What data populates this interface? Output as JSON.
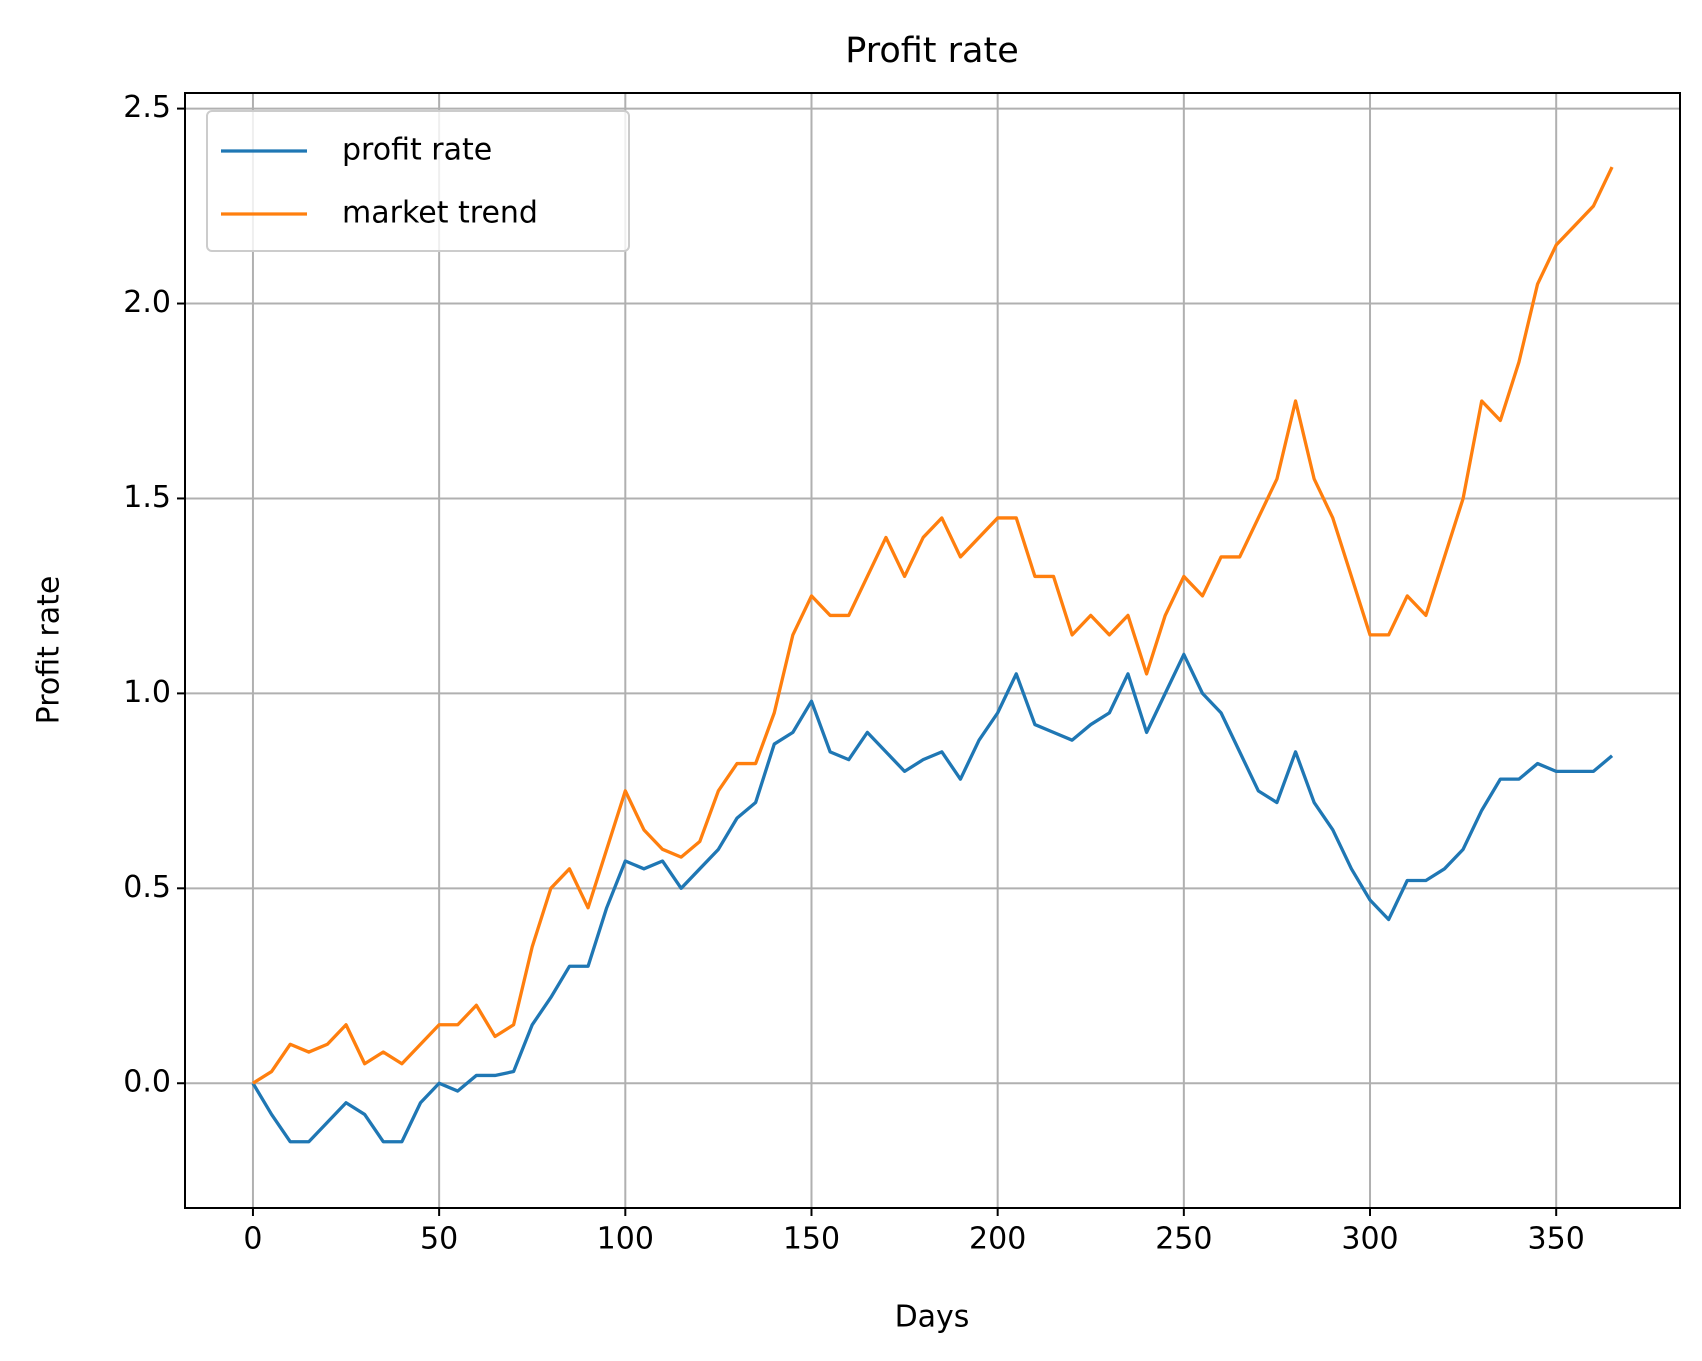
{
  "chart_data": {
    "type": "line",
    "title": "Profit rate",
    "x_label": "Days",
    "y_label": "Profit rate",
    "x": [
      0,
      5,
      10,
      15,
      20,
      25,
      30,
      35,
      40,
      45,
      50,
      55,
      60,
      65,
      70,
      75,
      80,
      85,
      90,
      95,
      100,
      105,
      110,
      115,
      120,
      125,
      130,
      135,
      140,
      145,
      150,
      155,
      160,
      165,
      170,
      175,
      180,
      185,
      190,
      195,
      200,
      205,
      210,
      215,
      220,
      225,
      230,
      235,
      240,
      245,
      250,
      255,
      260,
      265,
      270,
      275,
      280,
      285,
      290,
      295,
      300,
      305,
      310,
      315,
      320,
      325,
      330,
      335,
      340,
      345,
      350,
      355,
      360,
      365
    ],
    "series": [
      {
        "name": "profit rate",
        "color": "#1f77b4",
        "values": [
          0,
          -0.08,
          -0.15,
          -0.15,
          -0.1,
          -0.05,
          -0.08,
          -0.15,
          -0.15,
          -0.05,
          0.0,
          -0.02,
          0.02,
          0.02,
          0.03,
          0.15,
          0.22,
          0.3,
          0.3,
          0.45,
          0.57,
          0.55,
          0.57,
          0.5,
          0.55,
          0.6,
          0.68,
          0.72,
          0.87,
          0.9,
          0.98,
          0.85,
          0.83,
          0.9,
          0.85,
          0.8,
          0.83,
          0.85,
          0.78,
          0.88,
          0.95,
          1.05,
          0.92,
          0.9,
          0.88,
          0.92,
          0.95,
          1.05,
          0.9,
          1.0,
          1.1,
          1.0,
          0.95,
          0.85,
          0.75,
          0.72,
          0.85,
          0.72,
          0.65,
          0.55,
          0.47,
          0.42,
          0.52,
          0.52,
          0.55,
          0.6,
          0.7,
          0.78,
          0.78,
          0.82,
          0.8,
          0.8,
          0.8,
          0.84
        ]
      },
      {
        "name": "market trend",
        "color": "#ff7f0e",
        "values": [
          0,
          0.03,
          0.1,
          0.08,
          0.1,
          0.15,
          0.05,
          0.08,
          0.05,
          0.1,
          0.15,
          0.15,
          0.2,
          0.12,
          0.15,
          0.35,
          0.5,
          0.55,
          0.45,
          0.6,
          0.75,
          0.65,
          0.6,
          0.58,
          0.62,
          0.75,
          0.82,
          0.82,
          0.95,
          1.15,
          1.25,
          1.2,
          1.2,
          1.3,
          1.4,
          1.3,
          1.4,
          1.45,
          1.35,
          1.4,
          1.45,
          1.45,
          1.3,
          1.3,
          1.15,
          1.2,
          1.15,
          1.2,
          1.05,
          1.2,
          1.3,
          1.25,
          1.35,
          1.35,
          1.45,
          1.55,
          1.75,
          1.55,
          1.45,
          1.3,
          1.15,
          1.15,
          1.25,
          1.2,
          1.35,
          1.5,
          1.75,
          1.7,
          1.85,
          2.05,
          2.15,
          2.2,
          2.25,
          2.35
        ]
      }
    ],
    "xlim": [
      -18.25,
      383.25
    ],
    "ylim": [
      -0.32,
      2.54
    ],
    "xticks": [
      0,
      50,
      100,
      150,
      200,
      250,
      300,
      350
    ],
    "yticks": [
      {
        "value": 0,
        "label": "0.0"
      },
      {
        "value": 0.5,
        "label": "0.5"
      },
      {
        "value": 1,
        "label": "1.0"
      },
      {
        "value": 1.5,
        "label": "1.5"
      },
      {
        "value": 2,
        "label": "2.0"
      },
      {
        "value": 2.5,
        "label": "2.5"
      }
    ],
    "grid": true,
    "legend": "upper left"
  }
}
